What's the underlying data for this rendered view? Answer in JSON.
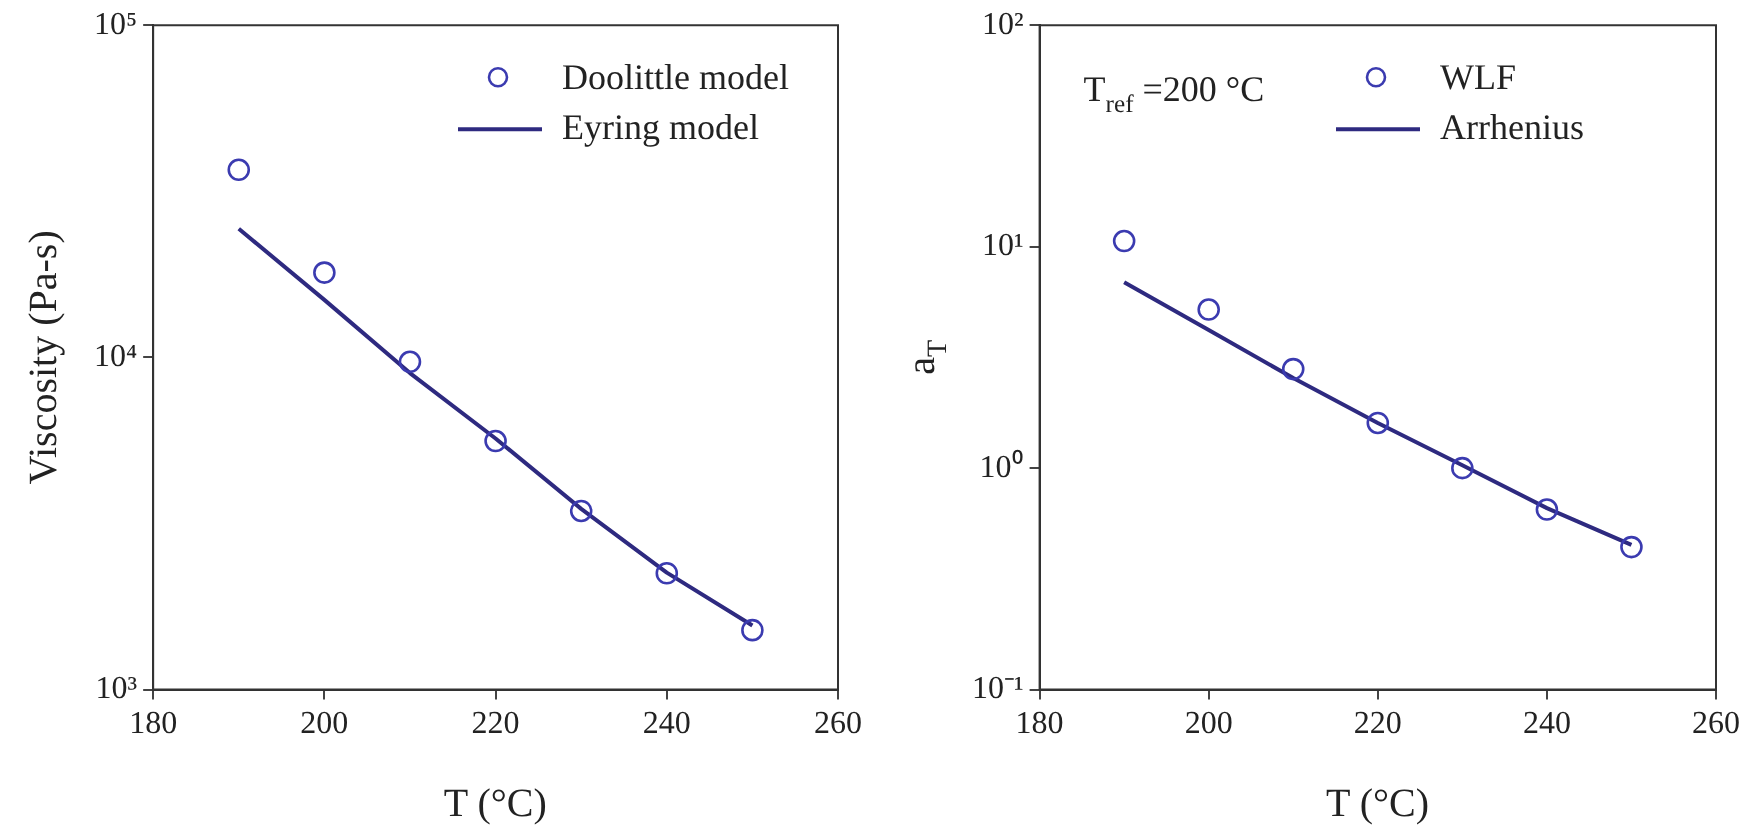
{
  "chart_data": [
    {
      "type": "line",
      "xlabel": "T (°C)",
      "ylabel": "Viscosity (Pa-s)",
      "log": "y",
      "grid": false,
      "legend": "top right",
      "x": [
        190,
        200,
        210,
        220,
        230,
        240,
        250
      ],
      "xlim": [
        180,
        260
      ],
      "xticks": [
        180,
        200,
        220,
        240,
        260
      ],
      "ylim": [
        1000,
        100000
      ],
      "yticks": [
        {
          "value": 1000,
          "label": "10³"
        },
        {
          "value": 10000,
          "label": "10⁴"
        },
        {
          "value": 100000,
          "label": "10⁵"
        }
      ],
      "series": [
        {
          "name": "Doolittle model",
          "type": "scatter",
          "marker": "circle",
          "color": "#3b3bb0",
          "values": [
            36700,
            18000,
            9700,
            5600,
            3450,
            2240,
            1510
          ]
        },
        {
          "name": "Eyring model",
          "type": "line",
          "marker": "none",
          "line_style": "solid",
          "color": "#2e2a80",
          "values": [
            24400,
            14900,
            8970,
            5700,
            3500,
            2250,
            1560
          ]
        }
      ]
    },
    {
      "type": "line",
      "xlabel": "T (°C)",
      "ylabel": "a$_{T}$",
      "log": "y",
      "grid": false,
      "legend": "top right",
      "x": [
        190,
        200,
        210,
        220,
        230,
        240,
        250
      ],
      "xlim": [
        180,
        260
      ],
      "xticks": [
        180,
        200,
        220,
        240,
        260
      ],
      "ylim": [
        0.1,
        100
      ],
      "yticks": [
        {
          "value": 0.1,
          "label": "10⁻¹"
        },
        {
          "value": 1,
          "label": "10⁰"
        },
        {
          "value": 10,
          "label": "10¹"
        },
        {
          "value": 100,
          "label": "10²"
        }
      ],
      "annotations": [
        "T$_{ref}$ =200 °C"
      ],
      "series": [
        {
          "name": "WLF",
          "type": "scatter",
          "marker": "circle",
          "color": "#3b3bb0",
          "values": [
            10.6,
            5.2,
            2.8,
            1.6,
            1.0,
            0.65,
            0.44
          ]
        },
        {
          "name": "Arrhenius",
          "type": "line",
          "marker": "none",
          "line_style": "solid",
          "color": "#2e2a80",
          "values": [
            6.9,
            4.2,
            2.55,
            1.6,
            1.03,
            0.66,
            0.45
          ]
        }
      ]
    }
  ]
}
